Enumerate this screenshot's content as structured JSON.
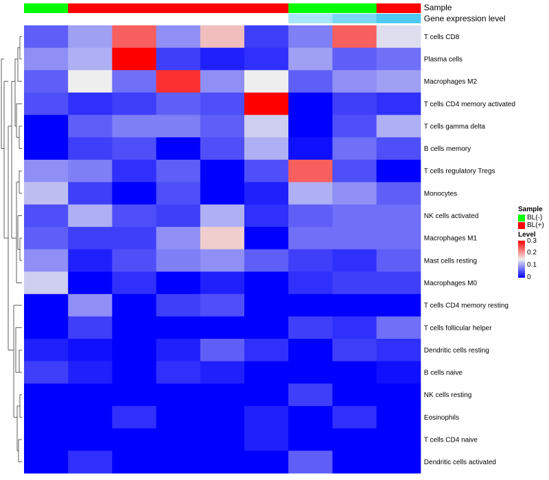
{
  "chart_data": {
    "type": "heatmap",
    "annotation_labels": [
      "Sample",
      "Gene expression level"
    ],
    "sample_groups": [
      "BL(-)",
      "BL(+)",
      "BL(+)",
      "BL(+)",
      "BL(+)",
      "BL(+)",
      "BL(-)",
      "BL(-)",
      "BL(+)"
    ],
    "expression_levels": [
      0.2,
      0.2,
      0.2,
      0.2,
      0.2,
      0.2,
      0.18,
      0.17,
      0.16
    ],
    "rows": [
      "T cells CD8",
      "Plasma cells",
      "Macrophages M2",
      "T cells CD4 memory activated",
      "T cells gamma delta",
      "B cells memory",
      "T cells regulatory  Tregs",
      "Monocytes",
      "NK cells activated",
      "Macrophages M1",
      "Mast cells resting",
      "Macrophages M0",
      "T cells CD4 memory resting",
      "T cells follicular helper",
      "Dendritic cells resting",
      "B cells naive",
      "NK cells resting",
      "Eosinophils",
      "T cells CD4 naive",
      "Dendritic cells activated"
    ],
    "values": [
      [
        0.06,
        0.1,
        0.24,
        0.09,
        0.18,
        0.04,
        0.08,
        0.24,
        0.14
      ],
      [
        0.09,
        0.11,
        0.3,
        0.04,
        0.02,
        0.03,
        0.1,
        0.06,
        0.07
      ],
      [
        0.06,
        0.15,
        0.07,
        0.27,
        0.09,
        0.15,
        0.06,
        0.09,
        0.1
      ],
      [
        0.05,
        0.03,
        0.04,
        0.06,
        0.05,
        0.3,
        0.0,
        0.04,
        0.03
      ],
      [
        0.0,
        0.06,
        0.08,
        0.08,
        0.06,
        0.13,
        0.0,
        0.05,
        0.11
      ],
      [
        0.0,
        0.04,
        0.05,
        0.0,
        0.05,
        0.11,
        0.01,
        0.07,
        0.05
      ],
      [
        0.09,
        0.08,
        0.03,
        0.06,
        0.0,
        0.05,
        0.24,
        0.05,
        0.0
      ],
      [
        0.12,
        0.04,
        0.0,
        0.05,
        0.0,
        0.02,
        0.11,
        0.09,
        0.06
      ],
      [
        0.05,
        0.11,
        0.05,
        0.04,
        0.11,
        0.03,
        0.06,
        0.07,
        0.07
      ],
      [
        0.06,
        0.04,
        0.04,
        0.09,
        0.17,
        0.0,
        0.07,
        0.07,
        0.07
      ],
      [
        0.09,
        0.02,
        0.05,
        0.08,
        0.09,
        0.06,
        0.04,
        0.03,
        0.06
      ],
      [
        0.13,
        0.0,
        0.03,
        0.0,
        0.02,
        0.0,
        0.03,
        0.04,
        0.04
      ],
      [
        0.0,
        0.09,
        0.0,
        0.04,
        0.05,
        0.0,
        0.0,
        0.0,
        0.0
      ],
      [
        0.0,
        0.04,
        0.0,
        0.0,
        0.0,
        0.0,
        0.04,
        0.03,
        0.07
      ],
      [
        0.02,
        0.01,
        0.0,
        0.02,
        0.06,
        0.03,
        0.0,
        0.04,
        0.03
      ],
      [
        0.04,
        0.02,
        0.0,
        0.03,
        0.02,
        0.0,
        0.0,
        0.0,
        0.01
      ],
      [
        0.0,
        0.0,
        0.0,
        0.0,
        0.0,
        0.0,
        0.04,
        0.0,
        0.0
      ],
      [
        0.0,
        0.0,
        0.03,
        0.0,
        0.0,
        0.02,
        0.0,
        0.03,
        0.0
      ],
      [
        0.0,
        0.0,
        0.0,
        0.0,
        0.0,
        0.02,
        0.0,
        0.0,
        0.0
      ],
      [
        0.0,
        0.03,
        0.0,
        0.0,
        0.0,
        0.0,
        0.06,
        0.0,
        0.0
      ]
    ],
    "color_scale": {
      "min": 0,
      "mid": 0.15,
      "max": 0.3,
      "low": "#0000ff",
      "mid_color": "#eeeeee",
      "high": "#ff0000"
    },
    "legend": {
      "sample_title": "Sample",
      "sample_entries": [
        {
          "label": "BL(-)",
          "color": "#00ff00"
        },
        {
          "label": "BL(+)",
          "color": "#ff0000"
        }
      ],
      "level_title": "Level",
      "level_ticks": [
        "0.3",
        "0.2",
        "0.1",
        "0"
      ],
      "placement": "right"
    },
    "level_annotation_colors": {
      "low": "#4ec9f0",
      "high": "#ffffff"
    }
  }
}
